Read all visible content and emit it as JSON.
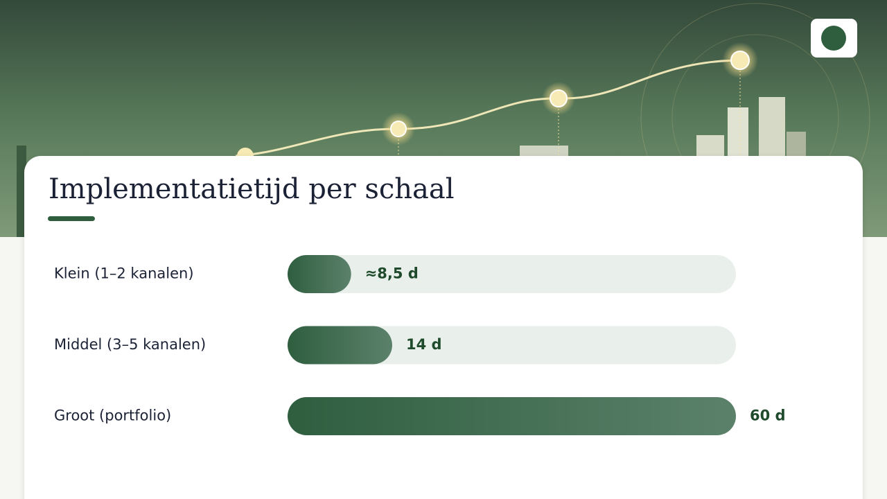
{
  "chart_data": {
    "type": "hbar",
    "title": "Implementatietijd per schaal",
    "categories": [
      "Klein (1–2 kanalen)",
      "Middel (3–5 kanalen)",
      "Groot (portfolio)"
    ],
    "values": [
      8.5,
      14,
      60
    ],
    "value_labels": [
      "≈8,5 d",
      "14 d",
      "60 d"
    ],
    "color": "#2f5e3f"
  }
}
